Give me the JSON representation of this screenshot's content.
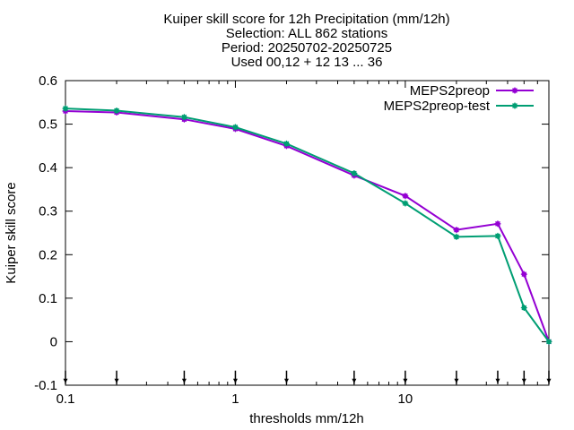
{
  "chart_data": {
    "type": "line",
    "title_lines": [
      "Kuiper skill score  for 12h Precipitation (mm/12h)",
      "Selection: ALL    862 stations",
      "Period: 20250702-20250725",
      "Used 00,12 + 12 13 ... 36"
    ],
    "xlabel": "thresholds mm/12h",
    "ylabel": "Kuiper skill score",
    "xscale": "log",
    "xlim": [
      0.1,
      70
    ],
    "ylim": [
      -0.1,
      0.6
    ],
    "xticks": [
      0.1,
      1,
      10
    ],
    "xtick_labels": [
      "0.1",
      "1",
      "10"
    ],
    "yticks": [
      -0.1,
      0,
      0.1,
      0.2,
      0.3,
      0.4,
      0.5,
      0.6
    ],
    "ytick_labels": [
      "-0.1",
      "0",
      "0.1",
      "0.2",
      "0.3",
      "0.4",
      "0.5",
      "0.6"
    ],
    "grid": false,
    "legend_position": "top-right",
    "x": [
      0.1,
      0.2,
      0.5,
      1,
      2,
      5,
      10,
      20,
      35,
      50,
      70
    ],
    "series": [
      {
        "name": "MEPS2preop",
        "color": "#9400d3",
        "values": [
          0.53,
          0.527,
          0.511,
          0.489,
          0.45,
          0.382,
          0.335,
          0.257,
          0.271,
          0.155,
          0.0
        ]
      },
      {
        "name": "MEPS2preop-test",
        "color": "#009e73",
        "values": [
          0.536,
          0.531,
          0.516,
          0.493,
          0.455,
          0.387,
          0.318,
          0.241,
          0.243,
          0.078,
          0.0
        ]
      }
    ]
  }
}
